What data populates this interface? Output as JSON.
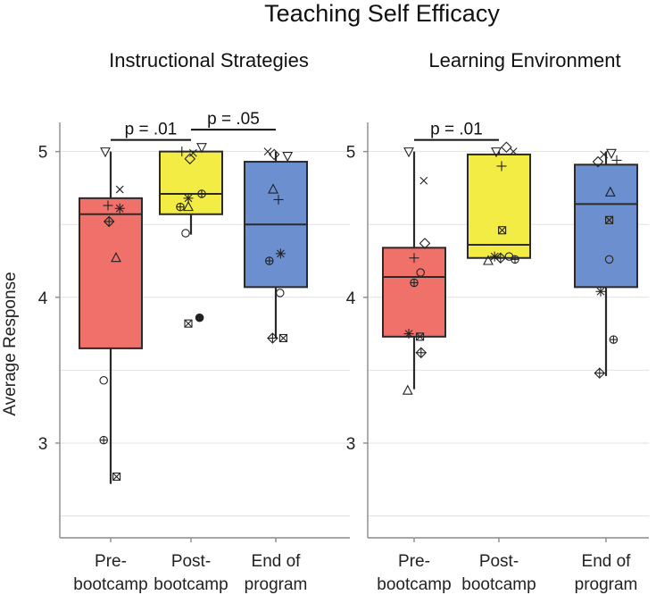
{
  "chart_data": {
    "type": "boxplot",
    "title": "Teaching Self Efficacy",
    "ylabel": "Average Response",
    "ylim": [
      2.35,
      5.2
    ],
    "yticks": [
      "3",
      "4",
      "5"
    ],
    "categories": [
      [
        "Pre-",
        "bootcamp"
      ],
      [
        "Post-",
        "bootcamp"
      ],
      [
        "End of",
        "program"
      ]
    ],
    "colors": [
      "#f0706a",
      "#f2ec45",
      "#6b8fcf"
    ],
    "panels": [
      {
        "subtitle": "Instructional Strategies",
        "boxes": [
          {
            "q1": 3.65,
            "median": 4.57,
            "q3": 4.68,
            "wlo": 2.72,
            "whi": 5.0,
            "points": [
              {
                "x": -0.1,
                "y": 5.0,
                "m": "tri-down"
              },
              {
                "x": 0.17,
                "y": 4.74,
                "m": "x"
              },
              {
                "x": -0.05,
                "y": 4.63,
                "m": "plus"
              },
              {
                "x": 0.17,
                "y": 4.61,
                "m": "asterisk"
              },
              {
                "x": -0.03,
                "y": 4.52,
                "m": "diamond-plus"
              },
              {
                "x": 0.1,
                "y": 4.27,
                "m": "tri-up"
              },
              {
                "x": -0.13,
                "y": 3.43,
                "m": "circle"
              },
              {
                "x": -0.13,
                "y": 3.02,
                "m": "circle-plus"
              },
              {
                "x": 0.11,
                "y": 2.77,
                "m": "square-x"
              }
            ]
          },
          {
            "q1": 4.57,
            "median": 4.71,
            "q3": 5.0,
            "wlo": 4.43,
            "whi": 5.0,
            "points": [
              {
                "x": -0.17,
                "y": 5.0,
                "m": "plus"
              },
              {
                "x": 0.04,
                "y": 4.99,
                "m": "x"
              },
              {
                "x": 0.2,
                "y": 5.03,
                "m": "tri-down"
              },
              {
                "x": -0.02,
                "y": 4.95,
                "m": "diamond"
              },
              {
                "x": -0.05,
                "y": 4.68,
                "m": "asterisk"
              },
              {
                "x": 0.2,
                "y": 4.71,
                "m": "circle-plus"
              },
              {
                "x": -0.2,
                "y": 4.62,
                "m": "circle-plus"
              },
              {
                "x": -0.05,
                "y": 4.62,
                "m": "tri-up"
              },
              {
                "x": -0.1,
                "y": 4.44,
                "m": "circle"
              },
              {
                "x": -0.05,
                "y": 3.82,
                "m": "square-x"
              },
              {
                "x": 0.16,
                "y": 3.86,
                "m": "dot"
              }
            ]
          },
          {
            "q1": 4.07,
            "median": 4.5,
            "q3": 4.93,
            "wlo": 3.72,
            "whi": 5.0,
            "points": [
              {
                "x": -0.15,
                "y": 5.0,
                "m": "x"
              },
              {
                "x": -0.03,
                "y": 4.98,
                "m": "diamond"
              },
              {
                "x": 0.22,
                "y": 4.97,
                "m": "tri-down"
              },
              {
                "x": -0.05,
                "y": 4.74,
                "m": "tri-up"
              },
              {
                "x": 0.05,
                "y": 4.67,
                "m": "plus"
              },
              {
                "x": 0.09,
                "y": 4.3,
                "m": "asterisk"
              },
              {
                "x": -0.12,
                "y": 4.25,
                "m": "circle-plus"
              },
              {
                "x": 0.08,
                "y": 4.03,
                "m": "circle"
              },
              {
                "x": -0.06,
                "y": 3.72,
                "m": "diamond-plus"
              },
              {
                "x": 0.14,
                "y": 3.72,
                "m": "square-x"
              }
            ]
          }
        ],
        "brackets": [
          {
            "from": 0,
            "to": 1,
            "label": "p = .01",
            "y": 5.08
          },
          {
            "from": 1,
            "to": 2,
            "label": "p = .05",
            "y": 5.15
          }
        ]
      },
      {
        "subtitle": "Learning Environment",
        "boxes": [
          {
            "q1": 3.73,
            "median": 4.14,
            "q3": 4.34,
            "wlo": 3.37,
            "whi": 5.0,
            "points": [
              {
                "x": -0.1,
                "y": 5.0,
                "m": "tri-down"
              },
              {
                "x": 0.18,
                "y": 4.8,
                "m": "x"
              },
              {
                "x": 0.2,
                "y": 4.37,
                "m": "diamond"
              },
              {
                "x": 0.0,
                "y": 4.27,
                "m": "plus"
              },
              {
                "x": 0.12,
                "y": 4.17,
                "m": "circle"
              },
              {
                "x": 0.0,
                "y": 4.1,
                "m": "circle-plus"
              },
              {
                "x": -0.1,
                "y": 3.75,
                "m": "asterisk"
              },
              {
                "x": 0.11,
                "y": 3.73,
                "m": "square-x"
              },
              {
                "x": 0.13,
                "y": 3.62,
                "m": "diamond-plus"
              },
              {
                "x": -0.12,
                "y": 3.36,
                "m": "tri-up"
              }
            ]
          },
          {
            "q1": 4.27,
            "median": 4.36,
            "q3": 4.98,
            "wlo": 4.27,
            "whi": 5.0,
            "points": [
              {
                "x": -0.05,
                "y": 5.0,
                "m": "tri-down"
              },
              {
                "x": 0.14,
                "y": 5.03,
                "m": "diamond"
              },
              {
                "x": 0.27,
                "y": 5.0,
                "m": "x"
              },
              {
                "x": 0.05,
                "y": 4.9,
                "m": "plus"
              },
              {
                "x": 0.06,
                "y": 4.46,
                "m": "square-x"
              },
              {
                "x": -0.2,
                "y": 4.25,
                "m": "tri-up"
              },
              {
                "x": -0.08,
                "y": 4.28,
                "m": "asterisk"
              },
              {
                "x": 0.03,
                "y": 4.27,
                "m": "diamond-plus"
              },
              {
                "x": 0.19,
                "y": 4.28,
                "m": "circle"
              },
              {
                "x": 0.3,
                "y": 4.26,
                "m": "circle-plus"
              }
            ]
          },
          {
            "q1": 4.07,
            "median": 4.64,
            "q3": 4.91,
            "wlo": 3.46,
            "whi": 5.0,
            "points": [
              {
                "x": -0.15,
                "y": 4.93,
                "m": "diamond"
              },
              {
                "x": -0.04,
                "y": 4.98,
                "m": "x"
              },
              {
                "x": 0.1,
                "y": 4.99,
                "m": "tri-down"
              },
              {
                "x": 0.2,
                "y": 4.94,
                "m": "plus"
              },
              {
                "x": 0.08,
                "y": 4.72,
                "m": "tri-up"
              },
              {
                "x": 0.06,
                "y": 4.53,
                "m": "square-x"
              },
              {
                "x": 0.06,
                "y": 4.26,
                "m": "circle"
              },
              {
                "x": -0.1,
                "y": 4.04,
                "m": "asterisk"
              },
              {
                "x": 0.14,
                "y": 3.71,
                "m": "circle-plus"
              },
              {
                "x": -0.12,
                "y": 3.48,
                "m": "diamond-plus"
              }
            ]
          }
        ],
        "brackets": [
          {
            "from": 0,
            "to": 1,
            "label": "p = .01",
            "y": 5.08
          }
        ]
      }
    ]
  }
}
